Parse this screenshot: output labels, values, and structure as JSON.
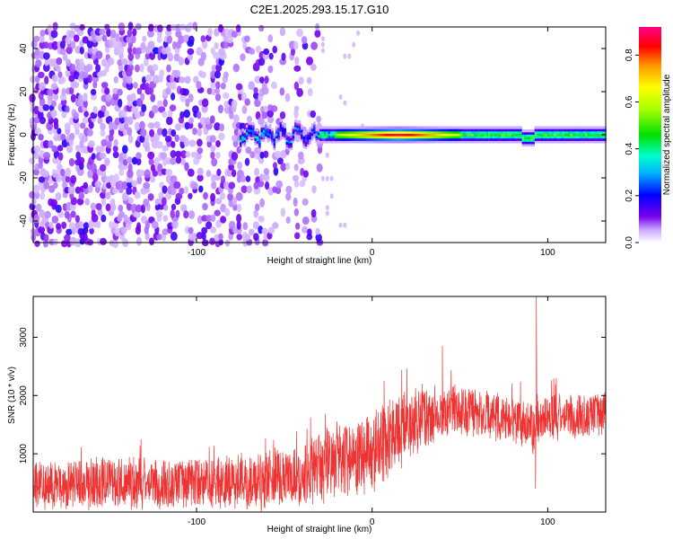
{
  "title": "C2E1.2025.293.15.17.G10",
  "chart_data": [
    {
      "type": "heatmap",
      "title": "C2E1.2025.293.15.17.G10",
      "xlabel": "Height of straight line (km)",
      "ylabel": "Frequency (Hz)",
      "xlim": [
        -193,
        133
      ],
      "ylim": [
        -50,
        50
      ],
      "xticks": [
        "-100",
        "0",
        "100"
      ],
      "xtick_values": [
        -100,
        0,
        100
      ],
      "yticks": [
        "-40",
        "-20",
        "0",
        "20",
        "40"
      ],
      "ytick_values": [
        -40,
        -20,
        0,
        20,
        40
      ],
      "colorbar": {
        "label": "Normalized spectral amplitude",
        "range": [
          0,
          0.92
        ],
        "ticks": [
          "0.0",
          "0.2",
          "0.4",
          "0.6",
          "0.8"
        ],
        "tick_values": [
          0,
          0.2,
          0.4,
          0.6,
          0.8
        ]
      },
      "description_values": {
        "noise_region_x": [
          -193,
          -30
        ],
        "signal_line_frequency": 0,
        "signal_start_x": -75,
        "signal_peak_region_x": [
          -20,
          50
        ],
        "peak_amplitude": 0.9
      }
    },
    {
      "type": "line",
      "xlabel": "Height of straight line (km)",
      "ylabel": "SNR (10 * v/v)",
      "xlim": [
        -193,
        133
      ],
      "ylim": [
        0,
        3700
      ],
      "xticks": [
        "-100",
        "0",
        "100"
      ],
      "xtick_values": [
        -100,
        0,
        100
      ],
      "yticks": [
        "1000",
        "2000",
        "3000"
      ],
      "ytick_values": [
        1000,
        2000,
        3000
      ],
      "color": "#ee3333",
      "envelope": {
        "x": [
          -193,
          -150,
          -100,
          -60,
          -40,
          -20,
          0,
          20,
          40,
          60,
          80,
          90,
          93,
          95,
          110,
          133
        ],
        "mean": [
          450,
          500,
          500,
          550,
          650,
          900,
          1000,
          1500,
          1750,
          1700,
          1600,
          1500,
          1450,
          1600,
          1650,
          1700
        ],
        "spread": [
          400,
          450,
          450,
          500,
          550,
          650,
          750,
          600,
          450,
          450,
          400,
          450,
          500,
          400,
          400,
          400
        ]
      },
      "spikes": [
        {
          "x": 93.5,
          "y": 3700
        },
        {
          "x": 93,
          "y": 400
        },
        {
          "x": 40,
          "y": 2850
        }
      ]
    }
  ]
}
